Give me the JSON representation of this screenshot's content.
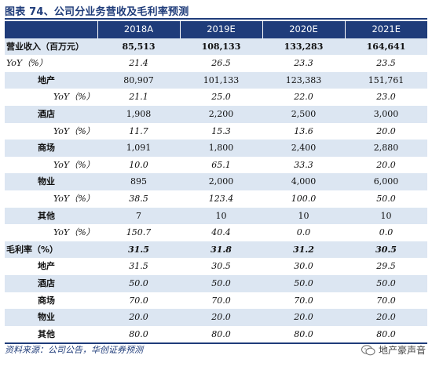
{
  "title": "图表 74、公司分业务营收及毛利率预测",
  "columns": [
    "",
    "2018A",
    "2019E",
    "2020E",
    "2021E"
  ],
  "rows": [
    {
      "label": "营业收入（百万元）",
      "values": [
        "85,513",
        "108,133",
        "133,283",
        "164,641"
      ],
      "level": 0,
      "style": "bold",
      "alt": true
    },
    {
      "label": "YoY（%）",
      "values": [
        "21.4",
        "26.5",
        "23.3",
        "23.5"
      ],
      "level": 0,
      "style": "ital",
      "alt": false
    },
    {
      "label": "地产",
      "values": [
        "80,907",
        "101,133",
        "123,383",
        "151,761"
      ],
      "level": 1,
      "style": "boldlabel",
      "alt": true
    },
    {
      "label": "YoY（%）",
      "values": [
        "21.1",
        "25.0",
        "22.0",
        "23.0"
      ],
      "level": 2,
      "style": "ital",
      "alt": false
    },
    {
      "label": "酒店",
      "values": [
        "1,908",
        "2,200",
        "2,500",
        "3,000"
      ],
      "level": 1,
      "style": "boldlabel",
      "alt": true
    },
    {
      "label": "YoY（%）",
      "values": [
        "11.7",
        "15.3",
        "13.6",
        "20.0"
      ],
      "level": 2,
      "style": "ital",
      "alt": false
    },
    {
      "label": "商场",
      "values": [
        "1,091",
        "1,800",
        "2,400",
        "2,880"
      ],
      "level": 1,
      "style": "boldlabel",
      "alt": true
    },
    {
      "label": "YoY（%）",
      "values": [
        "10.0",
        "65.1",
        "33.3",
        "20.0"
      ],
      "level": 2,
      "style": "ital",
      "alt": false
    },
    {
      "label": "物业",
      "values": [
        "895",
        "2,000",
        "4,000",
        "6,000"
      ],
      "level": 1,
      "style": "boldlabel",
      "alt": true
    },
    {
      "label": "YoY（%）",
      "values": [
        "38.5",
        "123.4",
        "100.0",
        "50.0"
      ],
      "level": 2,
      "style": "ital",
      "alt": false
    },
    {
      "label": "其他",
      "values": [
        "7",
        "10",
        "10",
        "10"
      ],
      "level": 1,
      "style": "boldlabel",
      "alt": true
    },
    {
      "label": "YoY（%）",
      "values": [
        "150.7",
        "40.4",
        "0.0",
        "0.0"
      ],
      "level": 2,
      "style": "ital",
      "alt": false
    },
    {
      "label": "毛利率（%）",
      "values": [
        "31.5",
        "31.8",
        "31.2",
        "30.5"
      ],
      "level": 0,
      "style": "bolditalic",
      "alt": true
    },
    {
      "label": "地产",
      "values": [
        "31.5",
        "30.5",
        "30.0",
        "29.5"
      ],
      "level": 1,
      "style": "italnum",
      "alt": false
    },
    {
      "label": "酒店",
      "values": [
        "50.0",
        "50.0",
        "50.0",
        "50.0"
      ],
      "level": 1,
      "style": "italnum",
      "alt": true
    },
    {
      "label": "商场",
      "values": [
        "70.0",
        "70.0",
        "70.0",
        "70.0"
      ],
      "level": 1,
      "style": "italnum",
      "alt": false
    },
    {
      "label": "物业",
      "values": [
        "20.0",
        "20.0",
        "20.0",
        "20.0"
      ],
      "level": 1,
      "style": "italnum",
      "alt": true
    },
    {
      "label": "其他",
      "values": [
        "80.0",
        "80.0",
        "80.0",
        "80.0"
      ],
      "level": 1,
      "style": "italnum",
      "alt": false
    }
  ],
  "source": "资料来源：公司公告，华创证券预测",
  "watermark": "地产豪声音",
  "colors": {
    "header_bg": "#1f3c7a",
    "alt_row_bg": "#dce6f2",
    "title": "#1f3c7a"
  }
}
